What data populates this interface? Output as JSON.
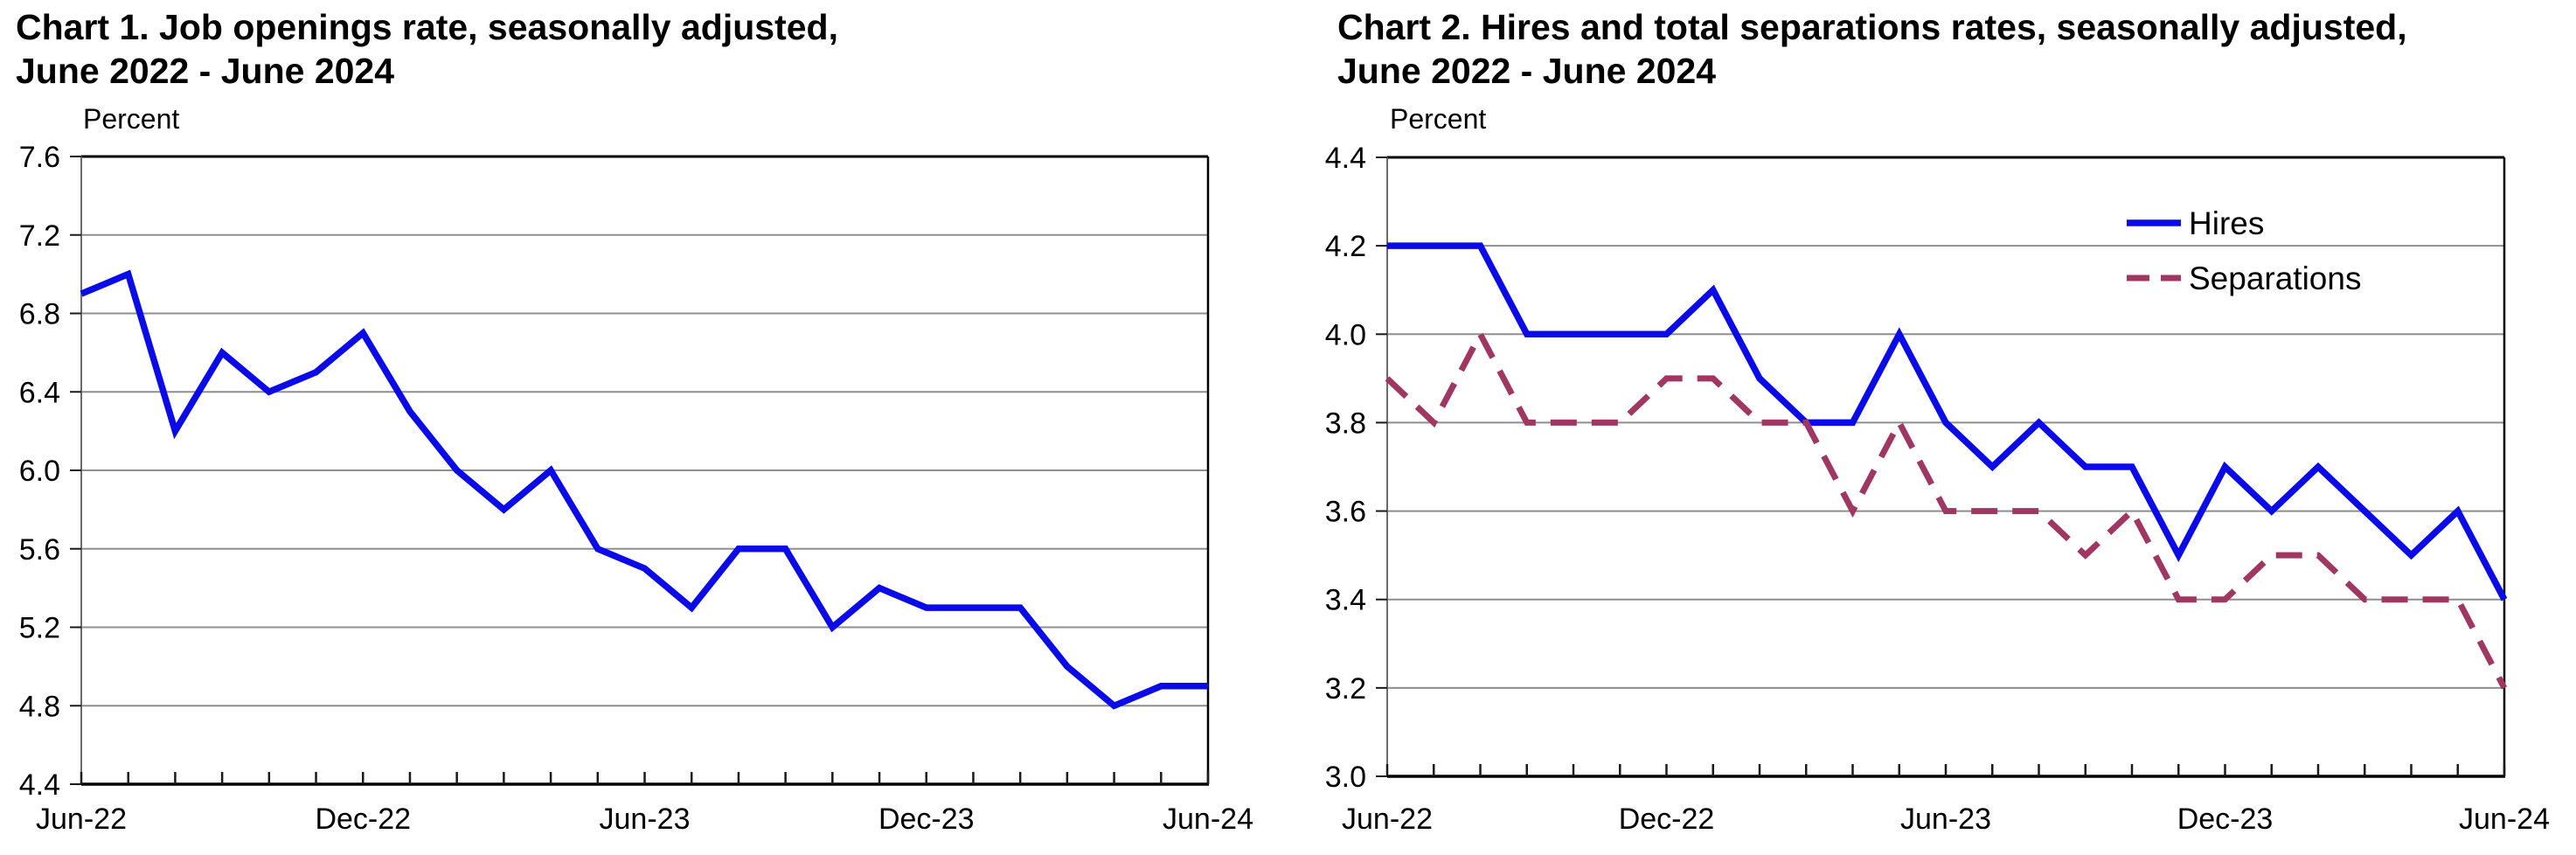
{
  "style": {
    "background": "#ffffff",
    "text_color": "#000000",
    "grid_color": "#8E8E8E",
    "axis_color": "#6B6B6B",
    "border_color": "#000000",
    "hires_blue": "#0B0BE8",
    "separations_maroon": "#A03763"
  },
  "chart_data": [
    {
      "type": "line",
      "title_line1": "Chart 1. Job openings rate, seasonally adjusted,",
      "title_line2": "June 2022 - June 2024",
      "y_axis_label": "Percent",
      "ylim": [
        4.4,
        7.6
      ],
      "ytick_step": 0.4,
      "grid": true,
      "legend": null,
      "x": [
        "Jun-22",
        "Jul-22",
        "Aug-22",
        "Sep-22",
        "Oct-22",
        "Nov-22",
        "Dec-22",
        "Jan-23",
        "Feb-23",
        "Mar-23",
        "Apr-23",
        "May-23",
        "Jun-23",
        "Jul-23",
        "Aug-23",
        "Sep-23",
        "Oct-23",
        "Nov-23",
        "Dec-23",
        "Jan-24",
        "Feb-24",
        "Mar-24",
        "Apr-24",
        "May-24",
        "Jun-24"
      ],
      "xtick_labels": [
        "Jun-22",
        "Dec-22",
        "Jun-23",
        "Dec-23",
        "Jun-24"
      ],
      "xtick_positions": [
        0,
        6,
        12,
        18,
        24
      ],
      "series": [
        {
          "name": "Job openings rate",
          "color": "#0B0BE8",
          "dash": "solid",
          "values": [
            6.9,
            7.0,
            6.2,
            6.6,
            6.4,
            6.5,
            6.7,
            6.3,
            6.0,
            5.8,
            6.0,
            5.6,
            5.5,
            5.3,
            5.6,
            5.6,
            5.2,
            5.4,
            5.3,
            5.3,
            5.3,
            5.0,
            4.8,
            4.9,
            4.9
          ]
        }
      ]
    },
    {
      "type": "line",
      "title_line1": "Chart 2. Hires and total separations rates, seasonally adjusted,",
      "title_line2": "June 2022 - June 2024",
      "y_axis_label": "Percent",
      "ylim": [
        3.0,
        4.4
      ],
      "ytick_step": 0.2,
      "grid": true,
      "legend": {
        "position": "top-right-inside",
        "entries": [
          "Hires",
          "Separations"
        ]
      },
      "x": [
        "Jun-22",
        "Jul-22",
        "Aug-22",
        "Sep-22",
        "Oct-22",
        "Nov-22",
        "Dec-22",
        "Jan-23",
        "Feb-23",
        "Mar-23",
        "Apr-23",
        "May-23",
        "Jun-23",
        "Jul-23",
        "Aug-23",
        "Sep-23",
        "Oct-23",
        "Nov-23",
        "Dec-23",
        "Jan-24",
        "Feb-24",
        "Mar-24",
        "Apr-24",
        "May-24",
        "Jun-24"
      ],
      "xtick_labels": [
        "Jun-22",
        "Dec-22",
        "Jun-23",
        "Dec-23",
        "Jun-24"
      ],
      "xtick_positions": [
        0,
        6,
        12,
        18,
        24
      ],
      "series": [
        {
          "name": "Hires",
          "color": "#0B0BE8",
          "dash": "solid",
          "values": [
            4.2,
            4.2,
            4.2,
            4.0,
            4.0,
            4.0,
            4.0,
            4.1,
            3.9,
            3.8,
            3.8,
            4.0,
            3.8,
            3.7,
            3.8,
            3.7,
            3.7,
            3.5,
            3.7,
            3.6,
            3.7,
            3.6,
            3.5,
            3.6,
            3.4
          ]
        },
        {
          "name": "Separations",
          "color": "#A03763",
          "dash": "dashed",
          "values": [
            3.9,
            3.8,
            4.0,
            3.8,
            3.8,
            3.8,
            3.9,
            3.9,
            3.8,
            3.8,
            3.6,
            3.8,
            3.6,
            3.6,
            3.6,
            3.5,
            3.6,
            3.4,
            3.4,
            3.5,
            3.5,
            3.4,
            3.4,
            3.4,
            3.2
          ]
        }
      ]
    }
  ]
}
